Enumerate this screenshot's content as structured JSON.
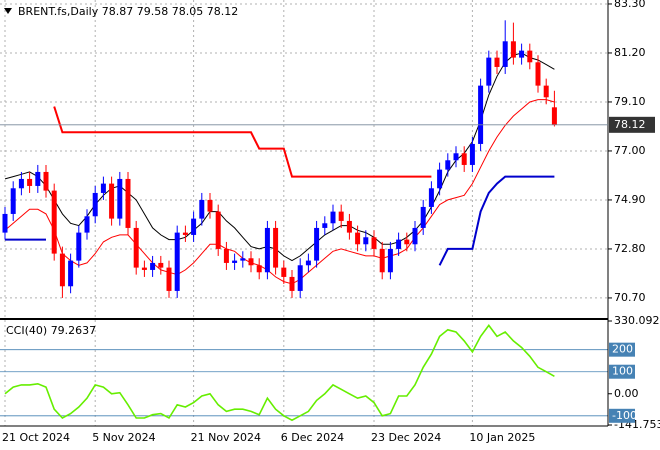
{
  "chart_data": [
    {
      "type": "candlestick",
      "title": "BRENT.fs,Daily",
      "categories": [
        "21 Oct 2024",
        null,
        null,
        null,
        null,
        null,
        null,
        null,
        null,
        null,
        null,
        "5 Nov 2024",
        null,
        null,
        null,
        null,
        null,
        null,
        null,
        null,
        null,
        null,
        null,
        "21 Nov 2024",
        null,
        null,
        null,
        null,
        null,
        null,
        null,
        null,
        null,
        null,
        "6 Dec 2024",
        null,
        null,
        null,
        null,
        null,
        null,
        null,
        null,
        null,
        null,
        "23 Dec 2024",
        null,
        null,
        null,
        null,
        null,
        null,
        null,
        null,
        null,
        null,
        null,
        "10 Jan 2025",
        null,
        null,
        null,
        null,
        null,
        null,
        null,
        null,
        null,
        null
      ],
      "open": [
        73.5,
        74.3,
        75.4,
        75.8,
        75.5,
        76.1,
        75.3,
        72.6,
        71.2,
        72.3,
        73.5,
        74.2,
        75.2,
        75.6,
        74.1,
        75.8,
        73.7,
        72.0,
        71.9,
        72.2,
        72.0,
        71.0,
        73.5,
        73.4,
        74.1,
        74.9,
        74.4,
        72.8,
        72.2,
        72.3,
        72.4,
        72.1,
        71.8,
        73.7,
        72.0,
        71.6,
        71.0,
        72.1,
        72.3,
        73.7,
        73.9,
        74.4,
        74.0,
        73.5,
        73.0,
        73.3,
        72.8,
        71.8,
        72.8,
        73.2,
        73.0,
        73.7,
        74.6,
        75.4,
        76.2,
        76.6,
        76.9,
        76.4,
        77.3,
        79.8,
        81.0,
        80.6,
        81.7,
        81.0,
        81.3,
        80.8,
        79.8,
        78.87
      ],
      "high": [
        74.6,
        75.7,
        76.1,
        76.1,
        76.4,
        76.4,
        75.6,
        72.9,
        72.6,
        73.8,
        74.5,
        75.5,
        75.9,
        75.9,
        76.1,
        76.1,
        74.0,
        72.3,
        72.5,
        72.5,
        72.3,
        73.8,
        73.8,
        74.4,
        75.2,
        75.2,
        74.7,
        73.1,
        72.6,
        72.7,
        72.7,
        72.4,
        74.0,
        74.0,
        72.3,
        71.9,
        72.4,
        72.6,
        74.0,
        74.2,
        74.7,
        74.7,
        74.3,
        73.8,
        73.6,
        73.6,
        73.1,
        73.1,
        73.5,
        73.5,
        74.0,
        74.9,
        75.7,
        76.5,
        76.9,
        77.2,
        77.2,
        77.6,
        80.1,
        81.3,
        81.3,
        82.6,
        82.5,
        81.6,
        81.6,
        81.1,
        80.1,
        79.58
      ],
      "low": [
        73.2,
        74.0,
        75.1,
        75.2,
        75.2,
        75.0,
        72.3,
        70.7,
        70.9,
        72.0,
        73.2,
        73.9,
        74.9,
        73.8,
        73.8,
        73.4,
        71.7,
        71.6,
        71.6,
        71.7,
        70.7,
        70.7,
        73.1,
        73.1,
        73.8,
        74.1,
        72.5,
        71.9,
        71.9,
        72.0,
        71.8,
        71.5,
        71.5,
        71.7,
        71.3,
        70.7,
        70.7,
        71.8,
        72.0,
        73.4,
        73.6,
        73.7,
        73.2,
        72.7,
        72.7,
        72.5,
        71.5,
        71.5,
        72.5,
        72.7,
        72.7,
        73.4,
        74.3,
        75.1,
        75.9,
        76.3,
        76.1,
        76.1,
        77.0,
        79.5,
        80.3,
        80.3,
        80.7,
        80.7,
        80.5,
        79.5,
        79.0,
        78.05
      ],
      "close": [
        74.3,
        75.4,
        75.8,
        75.5,
        76.1,
        75.3,
        72.6,
        71.2,
        72.3,
        73.5,
        74.2,
        75.2,
        75.6,
        74.1,
        75.8,
        73.7,
        72.0,
        71.9,
        72.2,
        72.0,
        71.0,
        73.5,
        73.4,
        74.1,
        74.9,
        74.4,
        72.8,
        72.2,
        72.3,
        72.4,
        72.1,
        71.8,
        73.7,
        72.0,
        71.6,
        71.0,
        72.1,
        72.3,
        73.7,
        73.9,
        74.4,
        74.0,
        73.5,
        73.0,
        73.3,
        72.8,
        71.8,
        72.8,
        73.2,
        73.0,
        73.7,
        74.6,
        75.4,
        76.2,
        76.6,
        76.9,
        76.4,
        77.3,
        79.8,
        81.0,
        80.6,
        81.7,
        81.0,
        81.3,
        80.8,
        79.8,
        79.3,
        78.12
      ],
      "up_color": "#0000ff",
      "down_color": "#ff0000",
      "lines": [
        {
          "color": "#000000",
          "width": 1,
          "values": [
            75.8,
            75.9,
            76.0,
            76.1,
            75.9,
            75.5,
            74.9,
            74.3,
            73.9,
            73.8,
            74.2,
            74.7,
            75.1,
            75.4,
            75.5,
            75.2,
            74.9,
            74.3,
            73.7,
            73.4,
            73.2,
            73.2,
            73.3,
            73.6,
            73.9,
            74.4,
            74.4,
            74.0,
            73.7,
            73.3,
            72.9,
            72.8,
            72.9,
            72.8,
            72.5,
            72.3,
            72.5,
            72.8,
            73.1,
            73.4,
            73.6,
            73.8,
            73.8,
            73.6,
            73.5,
            73.3,
            73.0,
            73.0,
            73.1,
            73.3,
            73.6,
            74.0,
            74.6,
            75.3,
            76.1,
            76.6,
            76.9,
            77.4,
            78.3,
            79.4,
            80.2,
            80.8,
            81.1,
            81.2,
            81.0,
            80.9,
            80.7,
            80.5
          ]
        },
        {
          "color": "#ff0000",
          "width": 1,
          "values": [
            73.6,
            73.9,
            74.2,
            74.5,
            74.5,
            74.3,
            73.6,
            72.6,
            72.3,
            72.1,
            72.2,
            72.6,
            73.1,
            73.3,
            73.4,
            73.4,
            73.0,
            72.6,
            72.2,
            71.9,
            71.8,
            71.7,
            71.9,
            72.2,
            72.6,
            73.0,
            73.0,
            72.8,
            72.7,
            72.4,
            72.2,
            72.1,
            71.9,
            71.6,
            71.4,
            71.3,
            71.5,
            71.8,
            72.1,
            72.4,
            72.7,
            72.8,
            72.7,
            72.6,
            72.5,
            72.5,
            72.4,
            72.5,
            72.6,
            72.8,
            73.3,
            73.7,
            74.2,
            74.7,
            74.9,
            75.0,
            75.1,
            75.6,
            76.3,
            77.0,
            77.6,
            78.1,
            78.5,
            78.8,
            79.1,
            79.2,
            79.2,
            79.1
          ]
        },
        {
          "color": "#ff0000",
          "width": 2,
          "values": [
            null,
            null,
            null,
            null,
            null,
            null,
            78.9,
            77.8,
            77.8,
            77.8,
            77.8,
            77.8,
            77.8,
            77.8,
            77.8,
            77.8,
            77.8,
            77.8,
            77.8,
            77.8,
            77.8,
            77.8,
            77.8,
            77.8,
            77.8,
            77.8,
            77.8,
            77.8,
            77.8,
            77.8,
            77.8,
            77.1,
            77.1,
            77.1,
            77.1,
            75.9,
            75.9,
            75.9,
            75.9,
            75.9,
            75.9,
            75.9,
            75.9,
            75.9,
            75.9,
            75.9,
            75.9,
            75.9,
            75.9,
            75.9,
            75.9,
            75.9,
            75.9,
            null,
            null,
            null,
            null,
            null,
            null,
            null,
            null,
            null,
            null,
            null,
            null,
            null,
            null,
            null
          ]
        },
        {
          "color": "#0000cc",
          "width": 2,
          "values": [
            73.2,
            73.2,
            73.2,
            73.2,
            73.2,
            73.2,
            null,
            null,
            null,
            null,
            null,
            null,
            null,
            null,
            null,
            null,
            null,
            null,
            null,
            null,
            null,
            null,
            null,
            null,
            null,
            null,
            null,
            null,
            null,
            null,
            null,
            null,
            null,
            null,
            null,
            null,
            null,
            null,
            null,
            null,
            null,
            null,
            null,
            null,
            null,
            null,
            null,
            null,
            null,
            null,
            null,
            null,
            null,
            72.1,
            72.8,
            72.8,
            72.8,
            72.8,
            74.4,
            75.2,
            75.6,
            75.9,
            75.9,
            75.9,
            75.9,
            75.9,
            75.9,
            75.9
          ]
        }
      ],
      "ylim": [
        69.84,
        83.47
      ],
      "yticks": [
        {
          "value": 83.3,
          "label": "83.30"
        },
        {
          "value": 81.2,
          "label": "81.20"
        },
        {
          "value": 79.1,
          "label": "79.10"
        },
        {
          "value": 77.0,
          "label": "77.00"
        },
        {
          "value": 74.9,
          "label": "74.90"
        },
        {
          "value": 72.8,
          "label": "72.80"
        },
        {
          "value": 70.7,
          "label": "70.70"
        }
      ],
      "grid": true
    },
    {
      "type": "line",
      "title": "CCI(40)",
      "color": "#66ee00",
      "values": [
        0,
        30,
        40,
        40,
        45,
        30,
        -70,
        -110,
        -90,
        -60,
        -20,
        40,
        30,
        0,
        5,
        -50,
        -110,
        -110,
        -95,
        -90,
        -110,
        -50,
        -60,
        -40,
        -10,
        0,
        -50,
        -80,
        -70,
        -70,
        -80,
        -95,
        -20,
        -70,
        -100,
        -120,
        -100,
        -80,
        -30,
        0,
        40,
        20,
        0,
        -20,
        -10,
        -40,
        -100,
        -90,
        -10,
        -10,
        40,
        120,
        180,
        260,
        290,
        280,
        240,
        190,
        260,
        310,
        260,
        280,
        240,
        210,
        170,
        120,
        100,
        79.2637
      ],
      "ylim": [
        -141.753,
        330.092
      ],
      "yticks": [
        330.092,
        {
          "value": 0,
          "label": "0.00"
        },
        -141.753
      ],
      "levels": [
        200,
        100,
        -100
      ],
      "level_color": "#4682b4"
    }
  ]
}
